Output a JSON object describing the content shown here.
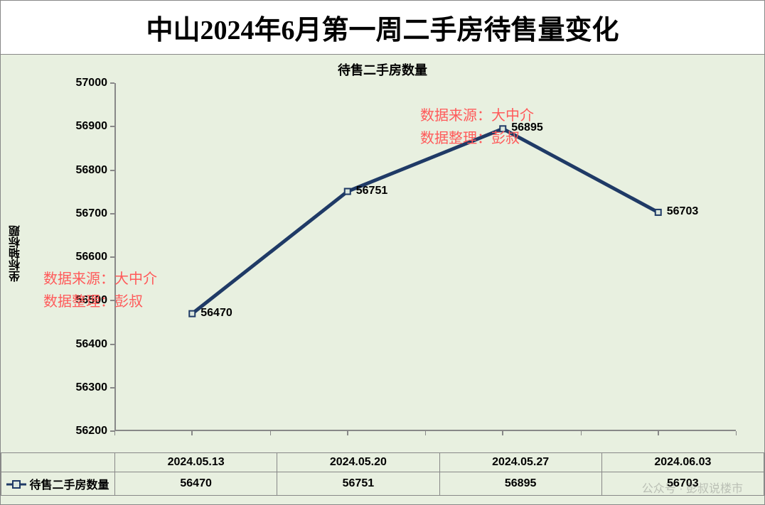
{
  "chart": {
    "type": "line",
    "main_title": "中山2024年6月第一周二手房待售量变化",
    "sub_title": "待售二手房数量",
    "y_axis_label": "坐标轴标题",
    "series_name": "待售二手房数量",
    "categories": [
      "2024.05.13",
      "2024.05.20",
      "2024.05.27",
      "2024.06.03"
    ],
    "values": [
      56470,
      56751,
      56895,
      56703
    ],
    "ylim": [
      56200,
      57000
    ],
    "ytick_step": 100,
    "yticks": [
      56200,
      56300,
      56400,
      56500,
      56600,
      56700,
      56800,
      56900,
      57000
    ],
    "line_color": "#1f3a66",
    "line_width": 5,
    "marker_border_color": "#1f3a66",
    "marker_fill_color": "#dce8de",
    "marker_size": 8,
    "background_color": "#e8f0e0",
    "title_bg_color": "#ffffff",
    "axis_color": "#888888",
    "title_fontsize": 38,
    "subtitle_fontsize": 18,
    "tick_fontsize": 16,
    "label_fontsize": 16
  },
  "watermarks": {
    "line1": "数据来源：大中介",
    "line2": "数据整理：彭叔",
    "bottom": "公众号 · 彭叔说楼市"
  }
}
